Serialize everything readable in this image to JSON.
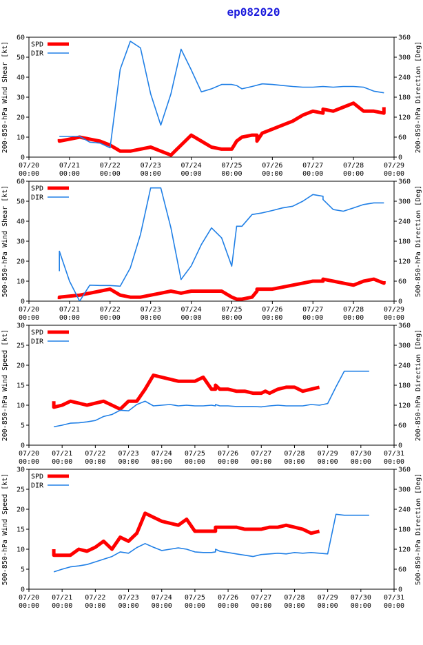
{
  "title": "ep082020",
  "colors": {
    "spd": "#ff0000",
    "dir": "#1f7fe6",
    "axis": "#000000"
  },
  "chart_data": [
    {
      "type": "line",
      "ylabel": "200-850-hPa Wind Shear [kt]",
      "y2label": "200-850-hPa Direction [Deg]",
      "xlim": [
        0,
        9
      ],
      "ylim": [
        0,
        60
      ],
      "y2lim": [
        0,
        360
      ],
      "yticks": [
        0,
        10,
        20,
        30,
        40,
        50,
        60
      ],
      "y2ticks": [
        0,
        60,
        120,
        180,
        240,
        300,
        360
      ],
      "xtick_labels": [
        [
          "07/20",
          "00:00"
        ],
        [
          "07/21",
          "00:00"
        ],
        [
          "07/22",
          "00:00"
        ],
        [
          "07/23",
          "00:00"
        ],
        [
          "07/24",
          "00:00"
        ],
        [
          "07/25",
          "00:00"
        ],
        [
          "07/26",
          "00:00"
        ],
        [
          "07/27",
          "00:00"
        ],
        [
          "07/28",
          "00:00"
        ],
        [
          "07/29",
          "00:00"
        ]
      ],
      "legend": [
        "SPD",
        "DIR"
      ],
      "series": [
        {
          "name": "SPD",
          "axis": "left",
          "x": [
            0.75,
            0.75,
            1.0,
            1.25,
            1.5,
            1.75,
            2.0,
            2.25,
            2.5,
            2.75,
            3.0,
            3.25,
            3.5,
            3.75,
            4.0,
            4.25,
            4.5,
            4.75,
            5.0,
            5.12,
            5.25,
            5.5,
            5.62,
            5.62,
            5.75,
            6.0,
            6.25,
            6.5,
            6.75,
            7.0,
            7.25,
            7.25,
            7.5,
            7.75,
            8.0,
            8.25,
            8.5,
            8.75,
            8.75
          ],
          "y": [
            9,
            8,
            9,
            10,
            9,
            8,
            6,
            3,
            3,
            4,
            5,
            3,
            1,
            6,
            11,
            8,
            5,
            4,
            4,
            8,
            10,
            11,
            11,
            8,
            12,
            14,
            16,
            18,
            21,
            23,
            22,
            24,
            23,
            25,
            27,
            23,
            23,
            22,
            25
          ]
        },
        {
          "name": "DIR",
          "axis": "right",
          "x": [
            0.75,
            1.0,
            1.25,
            1.5,
            1.75,
            2.0,
            2.25,
            2.5,
            2.75,
            3.0,
            3.25,
            3.5,
            3.75,
            4.0,
            4.25,
            4.5,
            4.75,
            5.0,
            5.12,
            5.25,
            5.5,
            5.75,
            6.0,
            6.25,
            6.5,
            6.75,
            7.0,
            7.25,
            7.5,
            7.75,
            8.0,
            8.25,
            8.5,
            8.75
          ],
          "y": [
            62,
            62,
            62,
            45,
            42,
            28,
            264,
            348,
            328,
            190,
            96,
            190,
            324,
            262,
            196,
            205,
            218,
            218,
            215,
            205,
            212,
            220,
            218,
            215,
            212,
            210,
            210,
            212,
            210,
            212,
            212,
            210,
            198,
            193
          ]
        }
      ]
    },
    {
      "type": "line",
      "ylabel": "500-850-hPa Wind Shear [kt]",
      "y2label": "500-850-hPa Direction [Deg]",
      "xlim": [
        0,
        9
      ],
      "ylim": [
        0,
        60
      ],
      "y2lim": [
        0,
        360
      ],
      "yticks": [
        0,
        10,
        20,
        30,
        40,
        50,
        60
      ],
      "y2ticks": [
        0,
        60,
        120,
        180,
        240,
        300,
        360
      ],
      "xtick_labels": [
        [
          "07/20",
          "00:00"
        ],
        [
          "07/21",
          "00:00"
        ],
        [
          "07/22",
          "00:00"
        ],
        [
          "07/23",
          "00:00"
        ],
        [
          "07/24",
          "00:00"
        ],
        [
          "07/25",
          "00:00"
        ],
        [
          "07/26",
          "00:00"
        ],
        [
          "07/27",
          "00:00"
        ],
        [
          "07/28",
          "00:00"
        ],
        [
          "07/29",
          "00:00"
        ]
      ],
      "legend": [
        "SPD",
        "DIR"
      ],
      "series": [
        {
          "name": "SPD",
          "axis": "left",
          "x": [
            0.75,
            0.75,
            1.0,
            1.25,
            1.5,
            1.75,
            2.0,
            2.25,
            2.5,
            2.75,
            3.0,
            3.25,
            3.5,
            3.75,
            4.0,
            4.25,
            4.5,
            4.75,
            5.0,
            5.12,
            5.25,
            5.5,
            5.62,
            5.62,
            5.75,
            6.0,
            6.25,
            6.5,
            6.75,
            7.0,
            7.25,
            7.25,
            7.5,
            7.75,
            8.0,
            8.25,
            8.5,
            8.75,
            8.75
          ],
          "y": [
            1,
            2,
            2.5,
            3,
            4,
            5,
            6,
            3,
            2,
            2,
            3,
            4,
            5,
            4,
            5,
            5,
            5,
            5,
            2,
            1,
            1,
            2,
            5,
            6,
            6,
            6,
            7,
            8,
            9,
            10,
            10,
            11,
            10,
            9,
            8,
            10,
            11,
            9,
            10
          ]
        },
        {
          "name": "DIR",
          "axis": "right",
          "x": [
            0.75,
            0.75,
            1.0,
            1.25,
            1.5,
            1.75,
            2.0,
            2.25,
            2.5,
            2.75,
            3.0,
            3.25,
            3.5,
            3.75,
            4.0,
            4.25,
            4.5,
            4.75,
            5.0,
            5.12,
            5.25,
            5.5,
            5.75,
            6.0,
            6.25,
            6.5,
            6.75,
            7.0,
            7.25,
            7.25,
            7.5,
            7.75,
            8.0,
            8.25,
            8.5,
            8.75
          ],
          "y": [
            90,
            150,
            60,
            0,
            48,
            47,
            47,
            45,
            100,
            200,
            340,
            340,
            220,
            65,
            106,
            170,
            220,
            190,
            105,
            225,
            225,
            260,
            265,
            272,
            280,
            285,
            300,
            320,
            315,
            305,
            275,
            270,
            280,
            290,
            295,
            295
          ]
        }
      ]
    },
    {
      "type": "line",
      "ylabel": "200-850-hPa Wind Speed [kt]",
      "y2label": "200-850-hPa Direction [Deg]",
      "xlim": [
        0,
        11
      ],
      "ylim": [
        0,
        30
      ],
      "y2lim": [
        0,
        360
      ],
      "yticks": [
        0,
        5,
        10,
        15,
        20,
        25,
        30
      ],
      "y2ticks": [
        0,
        60,
        120,
        180,
        240,
        300,
        360
      ],
      "xtick_labels": [
        [
          "07/20",
          "00:00"
        ],
        [
          "07/21",
          "00:00"
        ],
        [
          "07/22",
          "00:00"
        ],
        [
          "07/23",
          "00:00"
        ],
        [
          "07/24",
          "00:00"
        ],
        [
          "07/25",
          "00:00"
        ],
        [
          "07/26",
          "00:00"
        ],
        [
          "07/27",
          "00:00"
        ],
        [
          "07/28",
          "00:00"
        ],
        [
          "07/29",
          "00:00"
        ],
        [
          "07/30",
          "00:00"
        ],
        [
          "07/31",
          "00:00"
        ]
      ],
      "legend": [
        "SPD",
        "DIR"
      ],
      "series": [
        {
          "name": "SPD",
          "axis": "left",
          "x": [
            0.75,
            0.75,
            1.0,
            1.25,
            1.5,
            1.75,
            2.0,
            2.25,
            2.5,
            2.75,
            3.0,
            3.25,
            3.5,
            3.75,
            4.0,
            4.25,
            4.5,
            4.75,
            5.0,
            5.25,
            5.5,
            5.62,
            5.62,
            5.75,
            6.0,
            6.25,
            6.5,
            6.75,
            7.0,
            7.12,
            7.25,
            7.5,
            7.75,
            8.0,
            8.25,
            8.5,
            8.75
          ],
          "y": [
            11,
            9.5,
            10,
            11,
            10.5,
            10,
            10.5,
            11,
            10,
            9,
            11,
            11,
            14,
            17.5,
            17,
            16.5,
            16,
            16,
            16,
            17,
            14,
            14,
            15,
            14,
            14,
            13.5,
            13.5,
            13,
            13,
            13.5,
            13,
            14,
            14.5,
            14.5,
            13.5,
            14,
            14.5
          ]
        },
        {
          "name": "DIR",
          "axis": "right",
          "x": [
            0.75,
            1.0,
            1.25,
            1.5,
            1.75,
            2.0,
            2.25,
            2.5,
            2.75,
            3.0,
            3.25,
            3.5,
            3.75,
            4.0,
            4.25,
            4.5,
            4.75,
            5.0,
            5.25,
            5.5,
            5.62,
            5.62,
            5.75,
            6.0,
            6.25,
            6.5,
            6.75,
            7.0,
            7.25,
            7.5,
            7.75,
            8.0,
            8.25,
            8.5,
            8.75,
            9.0,
            9.25,
            9.5,
            9.75,
            10.0,
            10.25
          ],
          "y": [
            55,
            60,
            66,
            67,
            70,
            74,
            86,
            92,
            105,
            103,
            122,
            132,
            118,
            120,
            122,
            118,
            120,
            118,
            118,
            120,
            118,
            122,
            118,
            118,
            116,
            116,
            116,
            115,
            118,
            120,
            118,
            118,
            118,
            122,
            120,
            125,
            175,
            222,
            222,
            222,
            222
          ]
        }
      ]
    },
    {
      "type": "line",
      "ylabel": "500-850-hPa Wind Speed [kt]",
      "y2label": "500-850-hPa Direction [Deg]",
      "xlim": [
        0,
        11
      ],
      "ylim": [
        0,
        30
      ],
      "y2lim": [
        0,
        360
      ],
      "yticks": [
        0,
        5,
        10,
        15,
        20,
        25,
        30
      ],
      "y2ticks": [
        0,
        60,
        120,
        180,
        240,
        300,
        360
      ],
      "xtick_labels": [
        [
          "07/20",
          "00:00"
        ],
        [
          "07/21",
          "00:00"
        ],
        [
          "07/22",
          "00:00"
        ],
        [
          "07/23",
          "00:00"
        ],
        [
          "07/24",
          "00:00"
        ],
        [
          "07/25",
          "00:00"
        ],
        [
          "07/26",
          "00:00"
        ],
        [
          "07/27",
          "00:00"
        ],
        [
          "07/28",
          "00:00"
        ],
        [
          "07/29",
          "00:00"
        ],
        [
          "07/30",
          "00:00"
        ],
        [
          "07/31",
          "00:00"
        ]
      ],
      "legend": [
        "SPD",
        "DIR"
      ],
      "series": [
        {
          "name": "SPD",
          "axis": "left",
          "x": [
            0.75,
            0.75,
            1.0,
            1.25,
            1.5,
            1.75,
            2.0,
            2.25,
            2.5,
            2.75,
            3.0,
            3.25,
            3.5,
            3.75,
            4.0,
            4.25,
            4.5,
            4.75,
            5.0,
            5.25,
            5.5,
            5.62,
            5.62,
            5.75,
            6.0,
            6.25,
            6.5,
            6.75,
            7.0,
            7.25,
            7.5,
            7.75,
            8.0,
            8.25,
            8.5,
            8.75
          ],
          "y": [
            10,
            8.5,
            8.5,
            8.5,
            10,
            9.5,
            10.5,
            12,
            10,
            13,
            12,
            14,
            19,
            18,
            17,
            16.5,
            16,
            17.5,
            14.5,
            14.5,
            14.5,
            14.5,
            15.5,
            15.5,
            15.5,
            15.5,
            15,
            15,
            15,
            15.5,
            15.5,
            16,
            15.5,
            15,
            14,
            14.5
          ]
        },
        {
          "name": "DIR",
          "axis": "right",
          "x": [
            0.75,
            1.0,
            1.25,
            1.5,
            1.75,
            2.0,
            2.25,
            2.5,
            2.75,
            3.0,
            3.25,
            3.5,
            3.75,
            4.0,
            4.25,
            4.5,
            4.75,
            5.0,
            5.25,
            5.5,
            5.62,
            5.62,
            5.75,
            6.0,
            6.25,
            6.5,
            6.75,
            7.0,
            7.25,
            7.5,
            7.75,
            8.0,
            8.25,
            8.5,
            8.75,
            9.0,
            9.25,
            9.5,
            9.75,
            10.0,
            10.25
          ],
          "y": [
            52,
            60,
            67,
            70,
            74,
            82,
            90,
            98,
            112,
            108,
            125,
            137,
            126,
            116,
            120,
            124,
            120,
            112,
            110,
            110,
            112,
            120,
            114,
            110,
            106,
            102,
            98,
            104,
            106,
            108,
            106,
            110,
            108,
            110,
            108,
            106,
            225,
            222,
            222,
            222,
            222
          ]
        }
      ]
    }
  ]
}
